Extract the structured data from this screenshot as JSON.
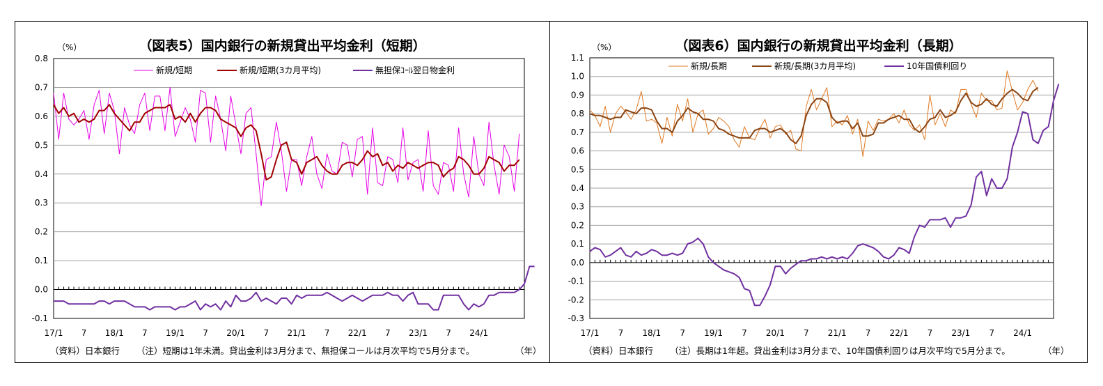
{
  "chart_data": [
    {
      "type": "line",
      "title": "（図表5）国内銀行の新規貸出平均金利（短期）",
      "unit": "（%）",
      "xunit": "（年）",
      "source": "（資料）日本銀行",
      "note": "（注）短期は1年未満。貸出金利は3月分まで、無担保コールは月次平均で5月分まで。",
      "ylim": [
        -0.1,
        0.8
      ],
      "yticks": [
        "0.8",
        "0.7",
        "0.6",
        "0.5",
        "0.4",
        "0.3",
        "0.2",
        "0.1",
        "0.0",
        "-0.1"
      ],
      "x_start": "2017-01",
      "xticks": [
        "17/1",
        "7",
        "18/1",
        "7",
        "19/1",
        "7",
        "20/1",
        "7",
        "21/1",
        "7",
        "22/1",
        "7",
        "23/1",
        "7",
        "24/1"
      ],
      "grid": true,
      "legend_position": "top",
      "series": [
        {
          "name": "新規/短期",
          "color": "#e600e6",
          "width": 1,
          "values": [
            0.68,
            0.52,
            0.68,
            0.59,
            0.57,
            0.59,
            0.62,
            0.52,
            0.64,
            0.69,
            0.54,
            0.68,
            0.62,
            0.47,
            0.63,
            0.57,
            0.54,
            0.64,
            0.68,
            0.55,
            0.67,
            0.67,
            0.55,
            0.7,
            0.53,
            0.58,
            0.63,
            0.59,
            0.51,
            0.69,
            0.68,
            0.51,
            0.67,
            0.59,
            0.48,
            0.67,
            0.57,
            0.47,
            0.61,
            0.63,
            0.47,
            0.29,
            0.45,
            0.46,
            0.58,
            0.48,
            0.34,
            0.45,
            0.45,
            0.36,
            0.46,
            0.53,
            0.4,
            0.35,
            0.47,
            0.41,
            0.4,
            0.51,
            0.5,
            0.39,
            0.52,
            0.53,
            0.33,
            0.56,
            0.37,
            0.36,
            0.46,
            0.45,
            0.37,
            0.56,
            0.38,
            0.44,
            0.45,
            0.34,
            0.55,
            0.36,
            0.33,
            0.44,
            0.43,
            0.34,
            0.56,
            0.4,
            0.32,
            0.53,
            0.4,
            0.36,
            0.58,
            0.43,
            0.33,
            0.5,
            0.46,
            0.34,
            0.54
          ]
        },
        {
          "name": "新規/短期(3カ月平均)",
          "color": "#a00000",
          "width": 2,
          "values": [
            0.64,
            0.61,
            0.63,
            0.6,
            0.61,
            0.58,
            0.59,
            0.58,
            0.59,
            0.62,
            0.62,
            0.64,
            0.61,
            0.59,
            0.57,
            0.55,
            0.58,
            0.58,
            0.61,
            0.62,
            0.63,
            0.63,
            0.63,
            0.64,
            0.59,
            0.6,
            0.58,
            0.61,
            0.58,
            0.61,
            0.63,
            0.63,
            0.62,
            0.59,
            0.58,
            0.57,
            0.56,
            0.53,
            0.56,
            0.57,
            0.55,
            0.47,
            0.38,
            0.39,
            0.45,
            0.5,
            0.51,
            0.45,
            0.44,
            0.4,
            0.44,
            0.45,
            0.46,
            0.43,
            0.41,
            0.4,
            0.4,
            0.43,
            0.44,
            0.44,
            0.43,
            0.45,
            0.48,
            0.46,
            0.47,
            0.43,
            0.44,
            0.41,
            0.43,
            0.42,
            0.44,
            0.43,
            0.42,
            0.43,
            0.44,
            0.44,
            0.43,
            0.39,
            0.41,
            0.42,
            0.46,
            0.45,
            0.43,
            0.4,
            0.4,
            0.42,
            0.46,
            0.45,
            0.44,
            0.41,
            0.43,
            0.43,
            0.45
          ]
        },
        {
          "name": "無担保ｺｰﾙ翌日物金利",
          "color": "#7030a0",
          "width": 2,
          "values": [
            -0.04,
            -0.04,
            -0.04,
            -0.05,
            -0.05,
            -0.05,
            -0.05,
            -0.05,
            -0.05,
            -0.04,
            -0.04,
            -0.05,
            -0.04,
            -0.04,
            -0.04,
            -0.05,
            -0.06,
            -0.06,
            -0.06,
            -0.07,
            -0.06,
            -0.06,
            -0.06,
            -0.06,
            -0.07,
            -0.06,
            -0.06,
            -0.05,
            -0.04,
            -0.07,
            -0.05,
            -0.06,
            -0.05,
            -0.07,
            -0.04,
            -0.06,
            -0.02,
            -0.04,
            -0.04,
            -0.03,
            -0.01,
            -0.04,
            -0.03,
            -0.04,
            -0.05,
            -0.03,
            -0.03,
            -0.05,
            -0.02,
            -0.03,
            -0.02,
            -0.02,
            -0.02,
            -0.02,
            -0.01,
            -0.02,
            -0.03,
            -0.04,
            -0.03,
            -0.02,
            -0.03,
            -0.04,
            -0.03,
            -0.02,
            -0.02,
            -0.02,
            -0.01,
            -0.02,
            -0.02,
            -0.04,
            -0.02,
            -0.01,
            -0.05,
            -0.05,
            -0.05,
            -0.07,
            -0.07,
            -0.02,
            -0.02,
            -0.02,
            -0.02,
            -0.05,
            -0.07,
            -0.05,
            -0.06,
            -0.05,
            -0.02,
            -0.02,
            -0.01,
            -0.01,
            -0.01,
            -0.01,
            0.0,
            0.02,
            0.08,
            0.08
          ]
        }
      ]
    },
    {
      "type": "line",
      "title": "（図表6）国内銀行の新規貸出平均金利（長期）",
      "unit": "（%）",
      "xunit": "（年）",
      "source": "（資料）日本銀行",
      "note": "（注）長期は1年超。貸出金利は3月分まで、10年国債利回りは月次平均で5月分まで。",
      "ylim": [
        -0.3,
        1.1
      ],
      "yticks": [
        "1.1",
        "1.0",
        "0.9",
        "0.8",
        "0.7",
        "0.6",
        "0.5",
        "0.4",
        "0.3",
        "0.2",
        "0.1",
        "0.0",
        "-0.1",
        "-0.2",
        "-0.3"
      ],
      "x_start": "2017-01",
      "xticks": [
        "17/1",
        "7",
        "18/1",
        "7",
        "19/1",
        "7",
        "20/1",
        "7",
        "21/1",
        "7",
        "22/1",
        "7",
        "23/1",
        "7",
        "24/1"
      ],
      "grid": true,
      "legend_position": "top",
      "series": [
        {
          "name": "新規/長期",
          "color": "#e07820",
          "width": 1,
          "values": [
            0.82,
            0.79,
            0.73,
            0.84,
            0.7,
            0.8,
            0.84,
            0.81,
            0.77,
            0.82,
            0.92,
            0.76,
            0.77,
            0.75,
            0.64,
            0.78,
            0.68,
            0.85,
            0.76,
            0.88,
            0.7,
            0.8,
            0.82,
            0.69,
            0.72,
            0.78,
            0.76,
            0.73,
            0.66,
            0.62,
            0.73,
            0.67,
            0.66,
            0.72,
            0.77,
            0.67,
            0.73,
            0.74,
            0.69,
            0.71,
            0.61,
            0.6,
            0.84,
            0.93,
            0.82,
            0.88,
            0.94,
            0.73,
            0.76,
            0.74,
            0.79,
            0.69,
            0.77,
            0.57,
            0.76,
            0.71,
            0.77,
            0.76,
            0.77,
            0.8,
            0.75,
            0.82,
            0.74,
            0.71,
            0.74,
            0.66,
            0.9,
            0.74,
            0.8,
            0.73,
            0.82,
            0.8,
            0.93,
            0.93,
            0.85,
            0.78,
            0.91,
            0.87,
            0.87,
            0.82,
            0.83,
            1.03,
            0.92,
            0.82,
            0.86,
            0.93,
            0.98,
            0.92
          ]
        },
        {
          "name": "新規/長期(3カ月平均)",
          "color": "#8b4513",
          "width": 2,
          "values": [
            0.8,
            0.79,
            0.79,
            0.78,
            0.77,
            0.78,
            0.78,
            0.82,
            0.81,
            0.8,
            0.83,
            0.83,
            0.82,
            0.76,
            0.72,
            0.72,
            0.7,
            0.76,
            0.79,
            0.83,
            0.81,
            0.8,
            0.77,
            0.77,
            0.76,
            0.72,
            0.71,
            0.69,
            0.68,
            0.67,
            0.67,
            0.67,
            0.71,
            0.72,
            0.72,
            0.7,
            0.71,
            0.72,
            0.7,
            0.66,
            0.64,
            0.68,
            0.79,
            0.85,
            0.88,
            0.88,
            0.86,
            0.78,
            0.75,
            0.76,
            0.76,
            0.72,
            0.75,
            0.68,
            0.68,
            0.69,
            0.75,
            0.75,
            0.77,
            0.78,
            0.79,
            0.77,
            0.77,
            0.72,
            0.7,
            0.73,
            0.77,
            0.78,
            0.82,
            0.78,
            0.79,
            0.81,
            0.87,
            0.91,
            0.86,
            0.84,
            0.85,
            0.88,
            0.85,
            0.84,
            0.88,
            0.91,
            0.93,
            0.91,
            0.88,
            0.87,
            0.92,
            0.94
          ]
        },
        {
          "name": "10年国債利回り",
          "color": "#7030a0",
          "width": 2,
          "values": [
            0.06,
            0.08,
            0.07,
            0.03,
            0.04,
            0.06,
            0.08,
            0.04,
            0.03,
            0.06,
            0.04,
            0.05,
            0.07,
            0.06,
            0.04,
            0.04,
            0.05,
            0.04,
            0.05,
            0.1,
            0.11,
            0.13,
            0.1,
            0.03,
            0.0,
            -0.02,
            -0.04,
            -0.05,
            -0.06,
            -0.08,
            -0.14,
            -0.15,
            -0.23,
            -0.23,
            -0.18,
            -0.12,
            -0.02,
            -0.02,
            -0.06,
            -0.03,
            -0.01,
            0.01,
            0.01,
            0.02,
            0.02,
            0.03,
            0.02,
            0.03,
            0.02,
            0.03,
            0.02,
            0.05,
            0.09,
            0.1,
            0.09,
            0.08,
            0.06,
            0.03,
            0.02,
            0.04,
            0.08,
            0.07,
            0.05,
            0.14,
            0.2,
            0.19,
            0.23,
            0.23,
            0.23,
            0.24,
            0.19,
            0.24,
            0.24,
            0.25,
            0.31,
            0.46,
            0.49,
            0.36,
            0.45,
            0.4,
            0.4,
            0.45,
            0.62,
            0.7,
            0.81,
            0.8,
            0.66,
            0.64,
            0.71,
            0.73,
            0.87,
            0.96
          ]
        }
      ]
    }
  ]
}
